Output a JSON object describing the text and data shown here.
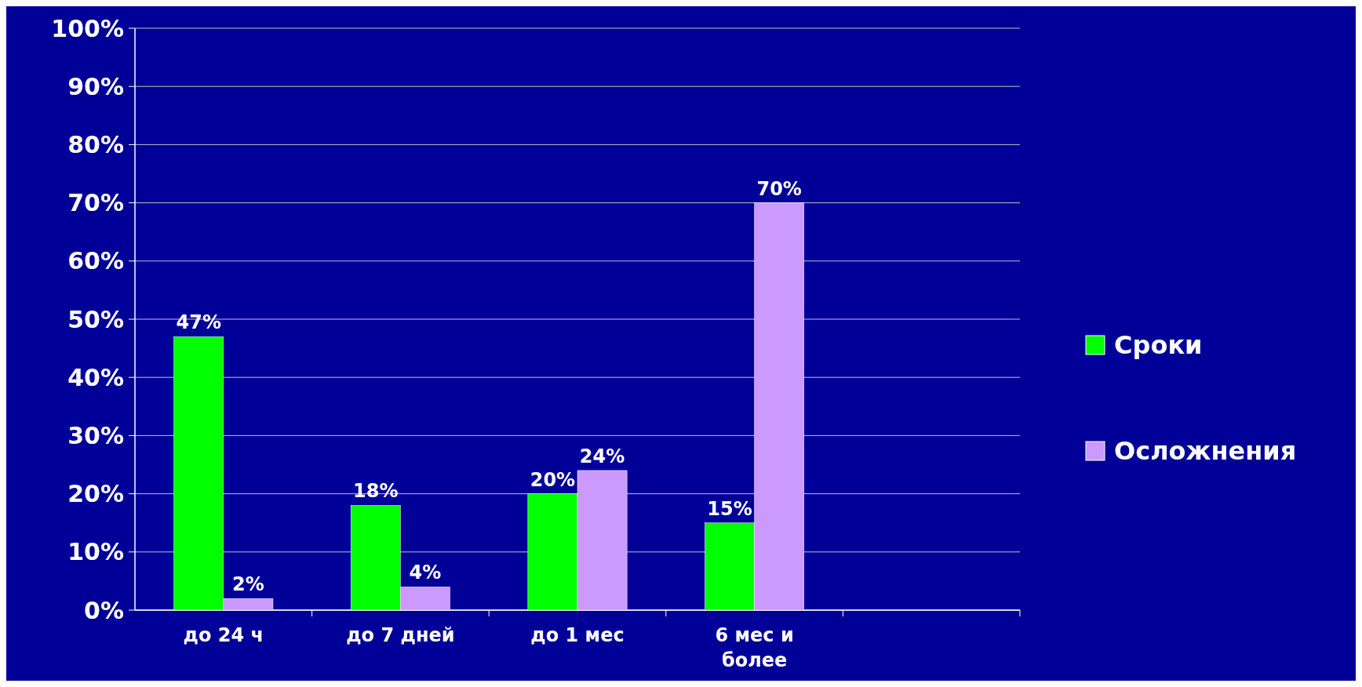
{
  "chart_data": {
    "type": "bar",
    "categories": [
      "до 24 ч",
      "до 7 дней",
      "до 1 мес",
      "6 мес и более",
      null
    ],
    "series": [
      {
        "name": "Сроки",
        "color": "#00ff00",
        "values": [
          47,
          18,
          20,
          15,
          null
        ],
        "value_labels": [
          "47%",
          "18%",
          "20%",
          "15%",
          null
        ]
      },
      {
        "name": "Осложнения",
        "color": "#cc99ff",
        "values": [
          2,
          4,
          24,
          70,
          null
        ],
        "value_labels": [
          "2%",
          "4%",
          "24%",
          "70%",
          null
        ]
      }
    ],
    "ylim": [
      0,
      100
    ],
    "yticks": [
      {
        "value": 0,
        "label": "0%"
      },
      {
        "value": 10,
        "label": "10%"
      },
      {
        "value": 20,
        "label": "20%"
      },
      {
        "value": 30,
        "label": "30%"
      },
      {
        "value": 40,
        "label": "40%"
      },
      {
        "value": 50,
        "label": "50%"
      },
      {
        "value": 60,
        "label": "60%"
      },
      {
        "value": 70,
        "label": "70%"
      },
      {
        "value": 80,
        "label": "80%"
      },
      {
        "value": 90,
        "label": "90%"
      },
      {
        "value": 100,
        "label": "100%"
      }
    ],
    "grid": "y",
    "legend": "right"
  }
}
